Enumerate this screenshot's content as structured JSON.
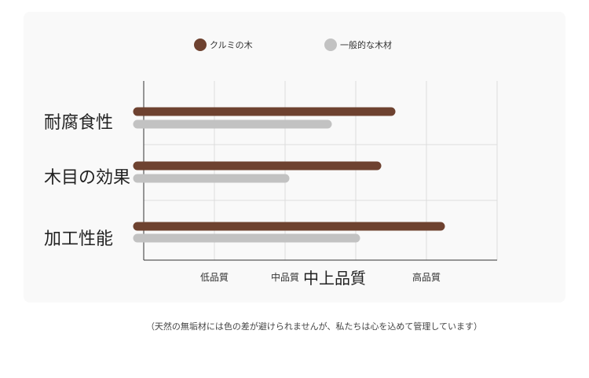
{
  "legend": {
    "walnut_label": "クルミの木",
    "general_label": "一般的な木材"
  },
  "colors": {
    "walnut": "#6e4230",
    "general": "#c2c2c2",
    "grid": "#dddddd",
    "axis": "#333333",
    "panel": "#f9f9f9"
  },
  "chart_data": {
    "type": "bar",
    "orientation": "horizontal",
    "categories": [
      "耐腐食性",
      "木目の効果",
      "加工性能"
    ],
    "x_tick_labels": [
      "低品質",
      "中品質",
      "中上品質",
      "高品質"
    ],
    "xlim": [
      0,
      5
    ],
    "series": [
      {
        "name": "クルミの木",
        "values": [
          3.5,
          3.3,
          4.2
        ]
      },
      {
        "name": "一般的な木材",
        "values": [
          2.6,
          2.0,
          3.0
        ]
      }
    ],
    "legend_position": "top",
    "grid": true
  },
  "footnote": "（天然の無垢材には色の差が避けられませんが、私たちは心を込めて管理しています）"
}
